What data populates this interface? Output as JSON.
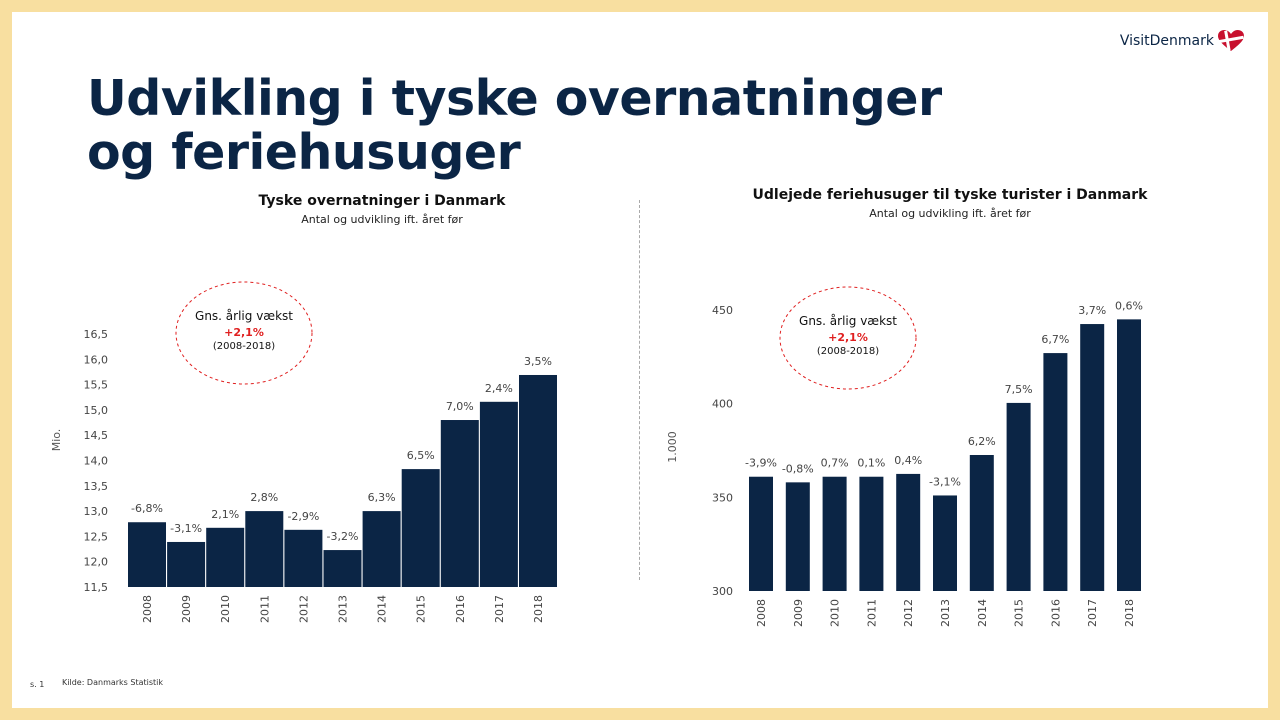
{
  "logo": {
    "text": "VisitDenmark",
    "icon": "heart-flag-icon"
  },
  "title_line1": "Udvikling i tyske overnatninger",
  "title_line2": "og feriehusuger",
  "footer": {
    "page": "s. 1",
    "source": "Kilde: Danmarks Statistik"
  },
  "colors": {
    "bar": "#0b2545",
    "accent": "#e02020",
    "border": "#f8dfa0"
  },
  "chart_data": [
    {
      "type": "bar",
      "title": "Tyske overnatninger i Danmark",
      "subtitle": "Antal og udvikling ift. året før",
      "ylabel": "Mio.",
      "ylim": [
        11.5,
        16.5
      ],
      "yticks": [
        "11,5",
        "12,0",
        "12,5",
        "13,0",
        "13,5",
        "14,0",
        "14,5",
        "15,0",
        "15,5",
        "16,0",
        "16,5"
      ],
      "categories": [
        "2008",
        "2009",
        "2010",
        "2011",
        "2012",
        "2013",
        "2014",
        "2015",
        "2016",
        "2017",
        "2018"
      ],
      "values": [
        12.78,
        12.39,
        12.67,
        13.0,
        12.63,
        12.23,
        13.0,
        13.83,
        14.8,
        15.16,
        15.69
      ],
      "data_labels": [
        "-6,8%",
        "-3,1%",
        "2,1%",
        "2,8%",
        "-2,9%",
        "-3,2%",
        "6,3%",
        "6,5%",
        "7,0%",
        "2,4%",
        "3,5%"
      ],
      "annotation": {
        "line1": "Gns. årlig vækst",
        "line2": "+2,1%",
        "line3": "(2008-2018)"
      },
      "grid": false
    },
    {
      "type": "bar",
      "title": "Udlejede feriehusuger til tyske turister i Danmark",
      "subtitle": "Antal og udvikling ift. året før",
      "ylabel": "1.000",
      "ylim": [
        300,
        450
      ],
      "yticks": [
        "300",
        "350",
        "400",
        "450"
      ],
      "categories": [
        "2008",
        "2009",
        "2010",
        "2011",
        "2012",
        "2013",
        "2014",
        "2015",
        "2016",
        "2017",
        "2018"
      ],
      "values": [
        361,
        358,
        361,
        361,
        362.5,
        351,
        372.6,
        400.4,
        427,
        442.5,
        445
      ],
      "data_labels": [
        "-3,9%",
        "-0,8%",
        "0,7%",
        "0,1%",
        "0,4%",
        "-3,1%",
        "6,2%",
        "7,5%",
        "6,7%",
        "3,7%",
        "0,6%"
      ],
      "annotation": {
        "line1": "Gns. årlig vækst",
        "line2": "+2,1%",
        "line3": "(2008-2018)"
      },
      "grid": false
    }
  ]
}
